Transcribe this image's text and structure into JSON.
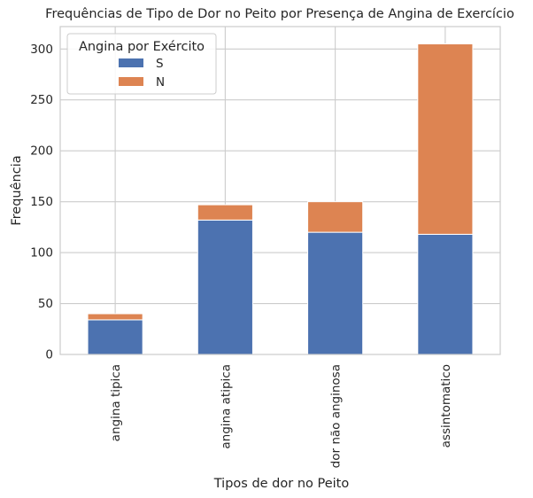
{
  "chart_data": {
    "type": "bar",
    "stacked": true,
    "title": "Frequências de Tipo de Dor no Peito por Presença de Angina de Exercício",
    "xlabel": "Tipos de dor no Peito",
    "ylabel": "Frequência",
    "categories": [
      "angina tipica",
      "angina atipica",
      "dor não anginosa",
      "assintomatico"
    ],
    "series": [
      {
        "name": "S",
        "values": [
          34,
          132,
          120,
          118
        ],
        "color": "#4c72b0"
      },
      {
        "name": "N",
        "values": [
          6,
          15,
          30,
          187
        ],
        "color": "#dd8452"
      }
    ],
    "ylim": [
      0,
      322
    ],
    "yticks": [
      0,
      50,
      100,
      150,
      200,
      250,
      300
    ],
    "grid": true,
    "legend": {
      "title": "Angina por Exército",
      "placement": "top-left"
    }
  }
}
